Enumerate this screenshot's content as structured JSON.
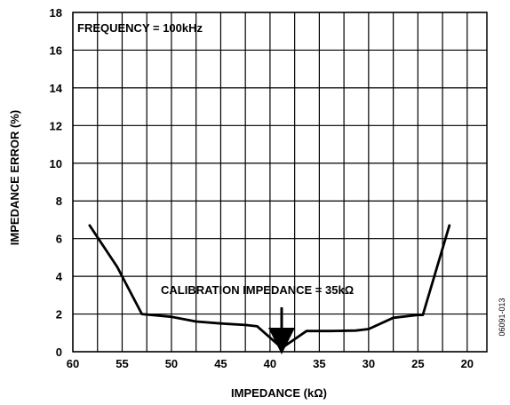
{
  "chart_data": {
    "type": "line",
    "title": "",
    "xlabel": "IMPEDANCE (kΩ)",
    "ylabel": "IMPEDANCE ERROR (%)",
    "xlim": [
      60,
      18
    ],
    "ylim": [
      0,
      18
    ],
    "x_reversed": true,
    "grid": true,
    "xticks": [
      60,
      55,
      50,
      45,
      40,
      35,
      30,
      25,
      20
    ],
    "yticks": [
      0,
      2,
      4,
      6,
      8,
      10,
      12,
      14,
      16,
      18
    ],
    "series": [
      {
        "x": [
          58.3,
          55.5,
          53.0,
          50.0,
          47.5,
          45.0,
          42.5,
          41.3,
          38.8,
          36.3,
          33.8,
          31.3,
          30.0,
          27.5,
          25.0,
          24.5,
          21.8
        ],
        "y": [
          6.7,
          4.5,
          2.0,
          1.85,
          1.6,
          1.5,
          1.42,
          1.35,
          0.2,
          1.1,
          1.1,
          1.12,
          1.2,
          1.8,
          1.95,
          1.95,
          6.7
        ],
        "color": "#000000"
      }
    ],
    "annotations": {
      "frequency": "FREQUENCY = 100kHz",
      "calibration": "CALIBRATION IMPEDANCE = 35kΩ",
      "figure_id": "06091-013"
    }
  }
}
